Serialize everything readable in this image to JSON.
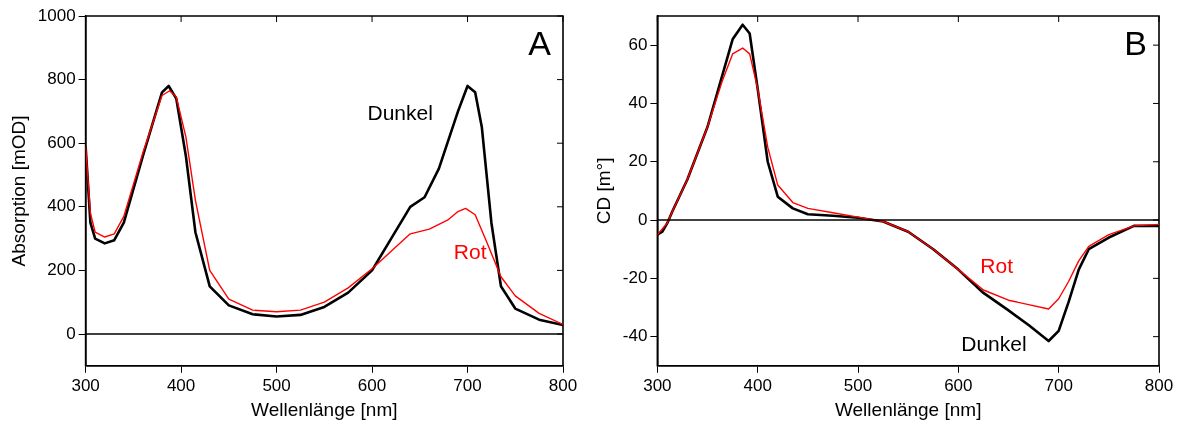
{
  "chart_data": [
    {
      "type": "line",
      "xlabel": "Wellenlänge [nm]",
      "ylabel": "Absorption [mOD]",
      "xlim": [
        300,
        800
      ],
      "xticks": [
        300,
        400,
        500,
        600,
        700,
        800
      ],
      "ylim": [
        -100,
        1000
      ],
      "yticks": [
        0,
        200,
        400,
        600,
        800,
        1000
      ],
      "grid": false,
      "legend": false,
      "marker": "none",
      "line_style": "solid",
      "ref_lines": [
        {
          "axis": "y",
          "value": 0,
          "color": "#000000"
        }
      ],
      "annotations": [
        "A"
      ],
      "series": [
        {
          "name": "Dunkel",
          "color": "#000000",
          "x": [
            300,
            305,
            310,
            320,
            330,
            340,
            360,
            380,
            387,
            395,
            405,
            415,
            430,
            450,
            475,
            500,
            525,
            550,
            575,
            600,
            620,
            640,
            655,
            670,
            690,
            700,
            708,
            715,
            725,
            735,
            750,
            775,
            800
          ],
          "values": [
            590,
            350,
            300,
            285,
            295,
            350,
            560,
            760,
            780,
            740,
            560,
            320,
            150,
            90,
            62,
            55,
            60,
            85,
            130,
            200,
            300,
            400,
            430,
            520,
            700,
            780,
            760,
            650,
            350,
            150,
            80,
            45,
            28
          ]
        },
        {
          "name": "Rot",
          "color": "#ff0000",
          "x": [
            300,
            305,
            310,
            320,
            330,
            340,
            360,
            380,
            388,
            395,
            405,
            415,
            430,
            450,
            475,
            500,
            525,
            550,
            575,
            600,
            620,
            640,
            660,
            680,
            690,
            698,
            708,
            720,
            735,
            750,
            775,
            800
          ],
          "values": [
            590,
            380,
            320,
            305,
            315,
            370,
            570,
            750,
            765,
            745,
            620,
            420,
            200,
            110,
            75,
            70,
            75,
            100,
            145,
            205,
            260,
            315,
            330,
            360,
            385,
            395,
            375,
            290,
            180,
            120,
            65,
            30
          ]
        }
      ]
    },
    {
      "type": "line",
      "xlabel": "Wellenlänge [nm]",
      "ylabel": "CD [m°]",
      "xlim": [
        300,
        800
      ],
      "xticks": [
        300,
        400,
        500,
        600,
        700,
        800
      ],
      "ylim": [
        -50,
        70
      ],
      "yticks": [
        -40,
        -20,
        0,
        20,
        40,
        60
      ],
      "grid": false,
      "legend": false,
      "marker": "none",
      "line_style": "solid",
      "ref_lines": [
        {
          "axis": "y",
          "value": 0,
          "color": "#000000"
        }
      ],
      "annotations": [
        "B"
      ],
      "series": [
        {
          "name": "Dunkel",
          "color": "#000000",
          "x": [
            300,
            305,
            310,
            315,
            330,
            350,
            365,
            375,
            385,
            392,
            400,
            410,
            420,
            435,
            450,
            475,
            500,
            525,
            550,
            575,
            600,
            625,
            650,
            670,
            690,
            700,
            710,
            720,
            730,
            750,
            775,
            800
          ],
          "values": [
            -5,
            -4,
            -1,
            3,
            14,
            32,
            50,
            62,
            67,
            64,
            45,
            20,
            8,
            4,
            2,
            1.5,
            0.8,
            -0.5,
            -4,
            -10,
            -17,
            -25,
            -31,
            -36,
            -41.5,
            -38,
            -28,
            -17,
            -10,
            -6,
            -2,
            -2
          ]
        },
        {
          "name": "Rot",
          "color": "#ff0000",
          "x": [
            300,
            310,
            315,
            330,
            350,
            365,
            375,
            385,
            392,
            400,
            410,
            420,
            435,
            450,
            475,
            500,
            525,
            550,
            575,
            600,
            625,
            650,
            670,
            690,
            700,
            710,
            720,
            730,
            750,
            775,
            800
          ],
          "values": [
            -5,
            -1,
            3,
            14,
            32,
            48,
            57,
            59,
            57,
            45,
            25,
            12,
            6,
            4,
            2.5,
            1,
            -0.5,
            -4,
            -10,
            -17,
            -24,
            -27.5,
            -29,
            -30.5,
            -27,
            -21,
            -14,
            -9,
            -5,
            -2,
            -1.5
          ]
        }
      ]
    }
  ]
}
